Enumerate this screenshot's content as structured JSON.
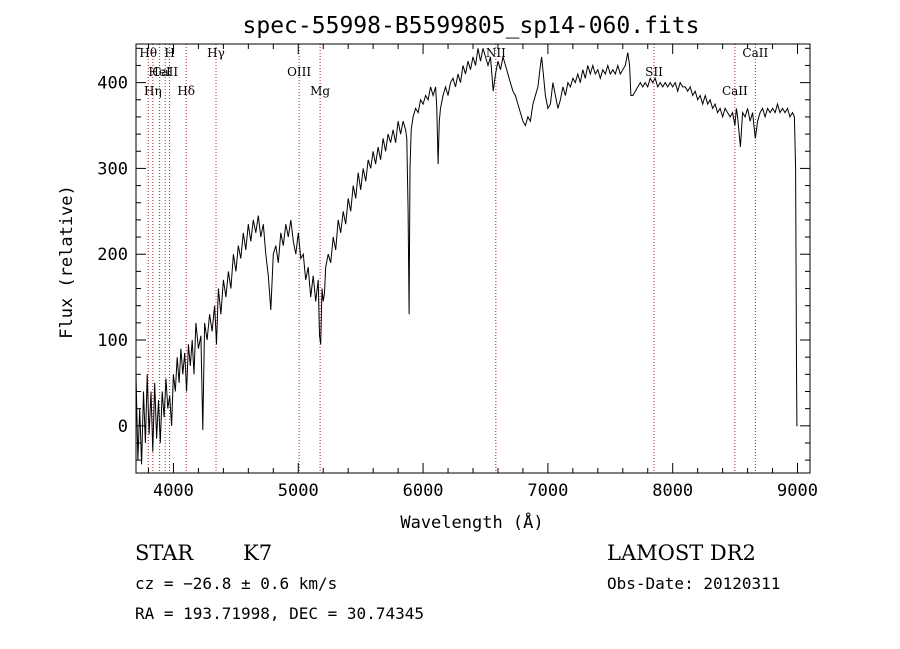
{
  "chart_data": {
    "type": "line",
    "title": "spec-55998-B5599805_sp14-060.fits",
    "xlabel": "Wavelength (Å)",
    "ylabel": "Flux (relative)",
    "xlim": [
      3700,
      9100
    ],
    "ylim": [
      -55,
      445
    ],
    "x_ticks": [
      4000,
      5000,
      6000,
      7000,
      8000,
      9000
    ],
    "y_ticks": [
      0,
      100,
      200,
      300,
      400
    ],
    "grid": false,
    "series": [
      {
        "points": [
          [
            3700,
            60
          ],
          [
            3715,
            -40
          ],
          [
            3730,
            20
          ],
          [
            3745,
            -45
          ],
          [
            3760,
            40
          ],
          [
            3775,
            -20
          ],
          [
            3790,
            60
          ],
          [
            3805,
            -10
          ],
          [
            3820,
            40
          ],
          [
            3835,
            -30
          ],
          [
            3850,
            50
          ],
          [
            3865,
            -15
          ],
          [
            3880,
            30
          ],
          [
            3895,
            -20
          ],
          [
            3910,
            40
          ],
          [
            3925,
            10
          ],
          [
            3940,
            55
          ],
          [
            3955,
            20
          ],
          [
            3970,
            35
          ],
          [
            3985,
            0
          ],
          [
            4000,
            60
          ],
          [
            4015,
            40
          ],
          [
            4030,
            80
          ],
          [
            4045,
            50
          ],
          [
            4060,
            90
          ],
          [
            4075,
            60
          ],
          [
            4090,
            85
          ],
          [
            4105,
            40
          ],
          [
            4120,
            95
          ],
          [
            4135,
            70
          ],
          [
            4150,
            100
          ],
          [
            4165,
            60
          ],
          [
            4180,
            120
          ],
          [
            4200,
            90
          ],
          [
            4220,
            105
          ],
          [
            4235,
            -5
          ],
          [
            4250,
            120
          ],
          [
            4270,
            100
          ],
          [
            4290,
            130
          ],
          [
            4310,
            110
          ],
          [
            4330,
            140
          ],
          [
            4345,
            95
          ],
          [
            4360,
            160
          ],
          [
            4380,
            130
          ],
          [
            4400,
            170
          ],
          [
            4420,
            150
          ],
          [
            4440,
            180
          ],
          [
            4460,
            160
          ],
          [
            4480,
            200
          ],
          [
            4500,
            180
          ],
          [
            4520,
            210
          ],
          [
            4540,
            195
          ],
          [
            4560,
            225
          ],
          [
            4580,
            205
          ],
          [
            4600,
            235
          ],
          [
            4620,
            215
          ],
          [
            4640,
            240
          ],
          [
            4660,
            225
          ],
          [
            4680,
            245
          ],
          [
            4700,
            220
          ],
          [
            4720,
            235
          ],
          [
            4740,
            200
          ],
          [
            4760,
            175
          ],
          [
            4780,
            135
          ],
          [
            4800,
            200
          ],
          [
            4820,
            210
          ],
          [
            4840,
            190
          ],
          [
            4860,
            225
          ],
          [
            4880,
            210
          ],
          [
            4900,
            235
          ],
          [
            4920,
            220
          ],
          [
            4940,
            240
          ],
          [
            4960,
            215
          ],
          [
            4980,
            200
          ],
          [
            5000,
            225
          ],
          [
            5020,
            195
          ],
          [
            5040,
            200
          ],
          [
            5060,
            170
          ],
          [
            5080,
            185
          ],
          [
            5100,
            150
          ],
          [
            5120,
            175
          ],
          [
            5140,
            145
          ],
          [
            5160,
            170
          ],
          [
            5170,
            105
          ],
          [
            5180,
            95
          ],
          [
            5190,
            160
          ],
          [
            5200,
            145
          ],
          [
            5210,
            155
          ],
          [
            5220,
            185
          ],
          [
            5240,
            200
          ],
          [
            5260,
            190
          ],
          [
            5280,
            220
          ],
          [
            5300,
            205
          ],
          [
            5320,
            240
          ],
          [
            5340,
            225
          ],
          [
            5360,
            250
          ],
          [
            5380,
            235
          ],
          [
            5400,
            265
          ],
          [
            5420,
            250
          ],
          [
            5440,
            280
          ],
          [
            5460,
            265
          ],
          [
            5480,
            295
          ],
          [
            5500,
            275
          ],
          [
            5520,
            300
          ],
          [
            5540,
            285
          ],
          [
            5560,
            310
          ],
          [
            5580,
            300
          ],
          [
            5600,
            320
          ],
          [
            5620,
            305
          ],
          [
            5640,
            325
          ],
          [
            5660,
            310
          ],
          [
            5680,
            335
          ],
          [
            5700,
            320
          ],
          [
            5720,
            340
          ],
          [
            5740,
            330
          ],
          [
            5760,
            345
          ],
          [
            5780,
            330
          ],
          [
            5800,
            355
          ],
          [
            5820,
            340
          ],
          [
            5840,
            355
          ],
          [
            5860,
            345
          ],
          [
            5870,
            335
          ],
          [
            5880,
            250
          ],
          [
            5888,
            130
          ],
          [
            5895,
            300
          ],
          [
            5905,
            345
          ],
          [
            5920,
            360
          ],
          [
            5940,
            370
          ],
          [
            5960,
            365
          ],
          [
            5980,
            380
          ],
          [
            6000,
            375
          ],
          [
            6020,
            385
          ],
          [
            6040,
            380
          ],
          [
            6060,
            395
          ],
          [
            6080,
            385
          ],
          [
            6100,
            395
          ],
          [
            6110,
            370
          ],
          [
            6120,
            305
          ],
          [
            6130,
            355
          ],
          [
            6140,
            370
          ],
          [
            6160,
            385
          ],
          [
            6180,
            395
          ],
          [
            6200,
            385
          ],
          [
            6220,
            400
          ],
          [
            6240,
            405
          ],
          [
            6260,
            395
          ],
          [
            6280,
            410
          ],
          [
            6300,
            400
          ],
          [
            6320,
            420
          ],
          [
            6340,
            410
          ],
          [
            6360,
            425
          ],
          [
            6380,
            415
          ],
          [
            6400,
            430
          ],
          [
            6420,
            420
          ],
          [
            6440,
            440
          ],
          [
            6460,
            425
          ],
          [
            6480,
            440
          ],
          [
            6500,
            430
          ],
          [
            6520,
            420
          ],
          [
            6540,
            430
          ],
          [
            6562,
            390
          ],
          [
            6580,
            410
          ],
          [
            6600,
            425
          ],
          [
            6620,
            415
          ],
          [
            6640,
            430
          ],
          [
            6660,
            420
          ],
          [
            6680,
            410
          ],
          [
            6700,
            400
          ],
          [
            6720,
            390
          ],
          [
            6740,
            385
          ],
          [
            6760,
            375
          ],
          [
            6780,
            365
          ],
          [
            6800,
            355
          ],
          [
            6820,
            350
          ],
          [
            6840,
            360
          ],
          [
            6860,
            355
          ],
          [
            6880,
            375
          ],
          [
            6900,
            385
          ],
          [
            6920,
            395
          ],
          [
            6940,
            420
          ],
          [
            6950,
            430
          ],
          [
            6960,
            415
          ],
          [
            6980,
            385
          ],
          [
            7000,
            370
          ],
          [
            7020,
            375
          ],
          [
            7040,
            400
          ],
          [
            7060,
            385
          ],
          [
            7080,
            370
          ],
          [
            7100,
            380
          ],
          [
            7120,
            395
          ],
          [
            7140,
            385
          ],
          [
            7160,
            400
          ],
          [
            7180,
            395
          ],
          [
            7200,
            405
          ],
          [
            7220,
            400
          ],
          [
            7240,
            410
          ],
          [
            7260,
            400
          ],
          [
            7280,
            415
          ],
          [
            7300,
            405
          ],
          [
            7320,
            420
          ],
          [
            7340,
            410
          ],
          [
            7360,
            420
          ],
          [
            7380,
            410
          ],
          [
            7400,
            415
          ],
          [
            7420,
            405
          ],
          [
            7440,
            415
          ],
          [
            7460,
            410
          ],
          [
            7480,
            420
          ],
          [
            7500,
            410
          ],
          [
            7520,
            415
          ],
          [
            7540,
            410
          ],
          [
            7560,
            420
          ],
          [
            7580,
            410
          ],
          [
            7600,
            415
          ],
          [
            7620,
            420
          ],
          [
            7640,
            435
          ],
          [
            7655,
            420
          ],
          [
            7665,
            385
          ],
          [
            7680,
            385
          ],
          [
            7700,
            390
          ],
          [
            7720,
            395
          ],
          [
            7740,
            400
          ],
          [
            7760,
            395
          ],
          [
            7780,
            400
          ],
          [
            7800,
            395
          ],
          [
            7820,
            405
          ],
          [
            7840,
            400
          ],
          [
            7860,
            405
          ],
          [
            7880,
            395
          ],
          [
            7900,
            400
          ],
          [
            7920,
            395
          ],
          [
            7940,
            400
          ],
          [
            7960,
            395
          ],
          [
            7980,
            400
          ],
          [
            8000,
            395
          ],
          [
            8020,
            400
          ],
          [
            8040,
            390
          ],
          [
            8060,
            400
          ],
          [
            8080,
            395
          ],
          [
            8100,
            395
          ],
          [
            8120,
            390
          ],
          [
            8140,
            395
          ],
          [
            8160,
            385
          ],
          [
            8180,
            390
          ],
          [
            8200,
            380
          ],
          [
            8220,
            385
          ],
          [
            8240,
            375
          ],
          [
            8260,
            385
          ],
          [
            8280,
            375
          ],
          [
            8300,
            380
          ],
          [
            8320,
            370
          ],
          [
            8340,
            375
          ],
          [
            8360,
            365
          ],
          [
            8380,
            370
          ],
          [
            8400,
            360
          ],
          [
            8420,
            370
          ],
          [
            8440,
            365
          ],
          [
            8460,
            360
          ],
          [
            8480,
            365
          ],
          [
            8498,
            350
          ],
          [
            8510,
            370
          ],
          [
            8520,
            360
          ],
          [
            8542,
            325
          ],
          [
            8560,
            365
          ],
          [
            8580,
            360
          ],
          [
            8600,
            370
          ],
          [
            8620,
            355
          ],
          [
            8640,
            365
          ],
          [
            8662,
            335
          ],
          [
            8680,
            355
          ],
          [
            8700,
            365
          ],
          [
            8720,
            370
          ],
          [
            8740,
            360
          ],
          [
            8760,
            370
          ],
          [
            8780,
            365
          ],
          [
            8800,
            370
          ],
          [
            8820,
            365
          ],
          [
            8840,
            375
          ],
          [
            8860,
            365
          ],
          [
            8880,
            370
          ],
          [
            8900,
            365
          ],
          [
            8920,
            370
          ],
          [
            8940,
            360
          ],
          [
            8960,
            365
          ],
          [
            8975,
            360
          ],
          [
            8985,
            300
          ],
          [
            8992,
            70
          ],
          [
            8995,
            0
          ],
          [
            9000,
            0
          ]
        ]
      }
    ],
    "line_markers": [
      {
        "label": "Hθ",
        "x": 3798
      },
      {
        "label": "CaII",
        "x": 3934
      },
      {
        "label": "Hη",
        "x": 3835
      },
      {
        "label": "H",
        "x": 3969
      },
      {
        "label": "HeI",
        "x": 3889
      },
      {
        "label": "Hδ",
        "x": 4102
      },
      {
        "label": "Hγ",
        "x": 4341
      },
      {
        "label": "OIII",
        "x": 5007
      },
      {
        "label": "Mg",
        "x": 5175
      },
      {
        "label": "NII",
        "x": 6583
      },
      {
        "label": "SII",
        "x": 7850
      },
      {
        "label": "CaII",
        "x": 8498
      },
      {
        "label": "CaII",
        "x": 8662
      }
    ]
  },
  "info": {
    "object_class": "STAR",
    "subclass": "K7",
    "survey": "LAMOST DR2",
    "cz": "cz = −26.8 ± 0.6 km/s",
    "obs_date": "Obs-Date: 20120311",
    "coords": "RA = 193.71998, DEC =  30.74345"
  },
  "colors": {
    "spectrum": "#000000",
    "marker": "#b22222",
    "axes": "#000000",
    "background": "#ffffff"
  }
}
